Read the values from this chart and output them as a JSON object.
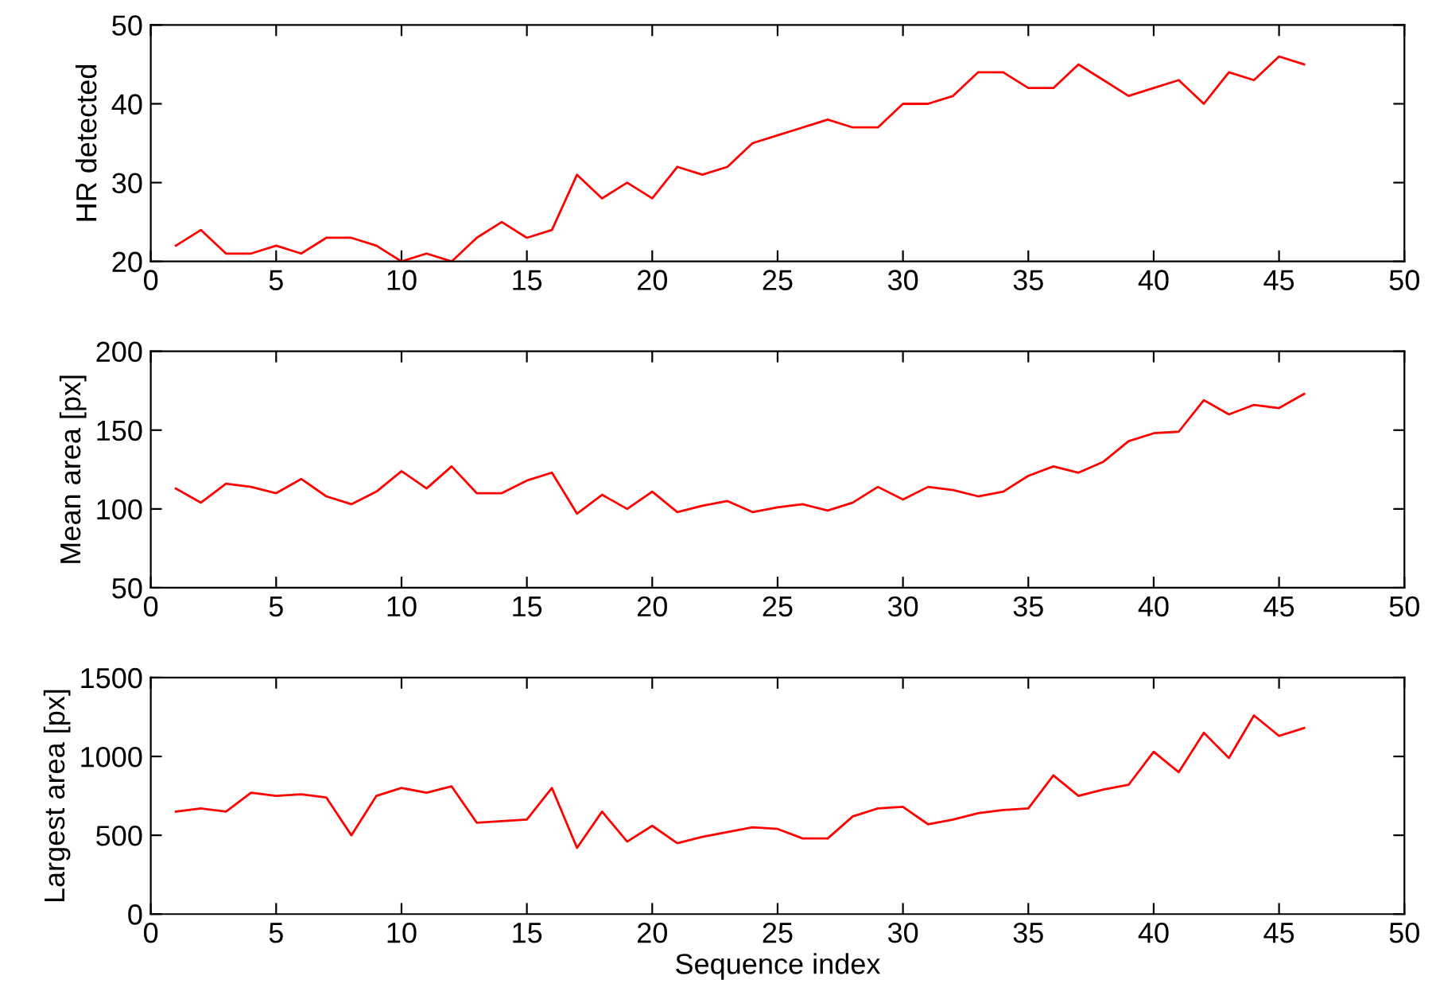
{
  "chart_data": [
    {
      "type": "line",
      "ylabel": "HR detected",
      "xlim": [
        0,
        50
      ],
      "xticks": [
        0,
        5,
        10,
        15,
        20,
        25,
        30,
        35,
        40,
        45,
        50
      ],
      "ylim": [
        20,
        50
      ],
      "yticks": [
        20,
        30,
        40,
        50
      ],
      "grid": false,
      "x": [
        1,
        2,
        3,
        4,
        5,
        6,
        7,
        8,
        9,
        10,
        11,
        12,
        13,
        14,
        15,
        16,
        17,
        18,
        19,
        20,
        21,
        22,
        23,
        24,
        25,
        26,
        27,
        28,
        29,
        30,
        31,
        32,
        33,
        34,
        35,
        36,
        37,
        38,
        39,
        40,
        41,
        42,
        43,
        44,
        45,
        46
      ],
      "series": [
        {
          "color": "#ff0000",
          "values": [
            22,
            24,
            21,
            21,
            22,
            21,
            23,
            23,
            22,
            20,
            21,
            20,
            23,
            25,
            23,
            24,
            31,
            28,
            30,
            28,
            32,
            31,
            32,
            35,
            36,
            37,
            38,
            37,
            37,
            40,
            40,
            41,
            44,
            44,
            42,
            42,
            45,
            43,
            41,
            42,
            43,
            40,
            44,
            43,
            46,
            45
          ]
        }
      ]
    },
    {
      "type": "line",
      "ylabel": "Mean area [px]",
      "xlim": [
        0,
        50
      ],
      "xticks": [
        0,
        5,
        10,
        15,
        20,
        25,
        30,
        35,
        40,
        45,
        50
      ],
      "ylim": [
        50,
        200
      ],
      "yticks": [
        50,
        100,
        150,
        200
      ],
      "grid": false,
      "x": [
        1,
        2,
        3,
        4,
        5,
        6,
        7,
        8,
        9,
        10,
        11,
        12,
        13,
        14,
        15,
        16,
        17,
        18,
        19,
        20,
        21,
        22,
        23,
        24,
        25,
        26,
        27,
        28,
        29,
        30,
        31,
        32,
        33,
        34,
        35,
        36,
        37,
        38,
        39,
        40,
        41,
        42,
        43,
        44,
        45,
        46
      ],
      "series": [
        {
          "color": "#ff0000",
          "values": [
            113,
            104,
            116,
            114,
            110,
            119,
            108,
            103,
            111,
            124,
            113,
            127,
            110,
            110,
            118,
            123,
            97,
            109,
            100,
            111,
            98,
            102,
            105,
            98,
            101,
            103,
            99,
            104,
            114,
            106,
            114,
            112,
            108,
            111,
            121,
            127,
            123,
            130,
            143,
            148,
            149,
            169,
            160,
            166,
            164,
            173
          ]
        }
      ]
    },
    {
      "type": "line",
      "xlabel": "Sequence index",
      "ylabel": "Largest area [px]",
      "xlim": [
        0,
        50
      ],
      "xticks": [
        0,
        5,
        10,
        15,
        20,
        25,
        30,
        35,
        40,
        45,
        50
      ],
      "ylim": [
        0,
        1500
      ],
      "yticks": [
        0,
        500,
        1000,
        1500
      ],
      "grid": false,
      "x": [
        1,
        2,
        3,
        4,
        5,
        6,
        7,
        8,
        9,
        10,
        11,
        12,
        13,
        14,
        15,
        16,
        17,
        18,
        19,
        20,
        21,
        22,
        23,
        24,
        25,
        26,
        27,
        28,
        29,
        30,
        31,
        32,
        33,
        34,
        35,
        36,
        37,
        38,
        39,
        40,
        41,
        42,
        43,
        44,
        45,
        46
      ],
      "series": [
        {
          "color": "#ff0000",
          "values": [
            650,
            670,
            650,
            770,
            750,
            760,
            740,
            500,
            750,
            800,
            770,
            810,
            580,
            590,
            600,
            800,
            420,
            650,
            460,
            560,
            450,
            490,
            520,
            550,
            540,
            480,
            480,
            620,
            670,
            680,
            570,
            600,
            640,
            660,
            670,
            880,
            750,
            790,
            820,
            1030,
            900,
            1150,
            990,
            1260,
            1130,
            1180
          ]
        }
      ]
    }
  ]
}
